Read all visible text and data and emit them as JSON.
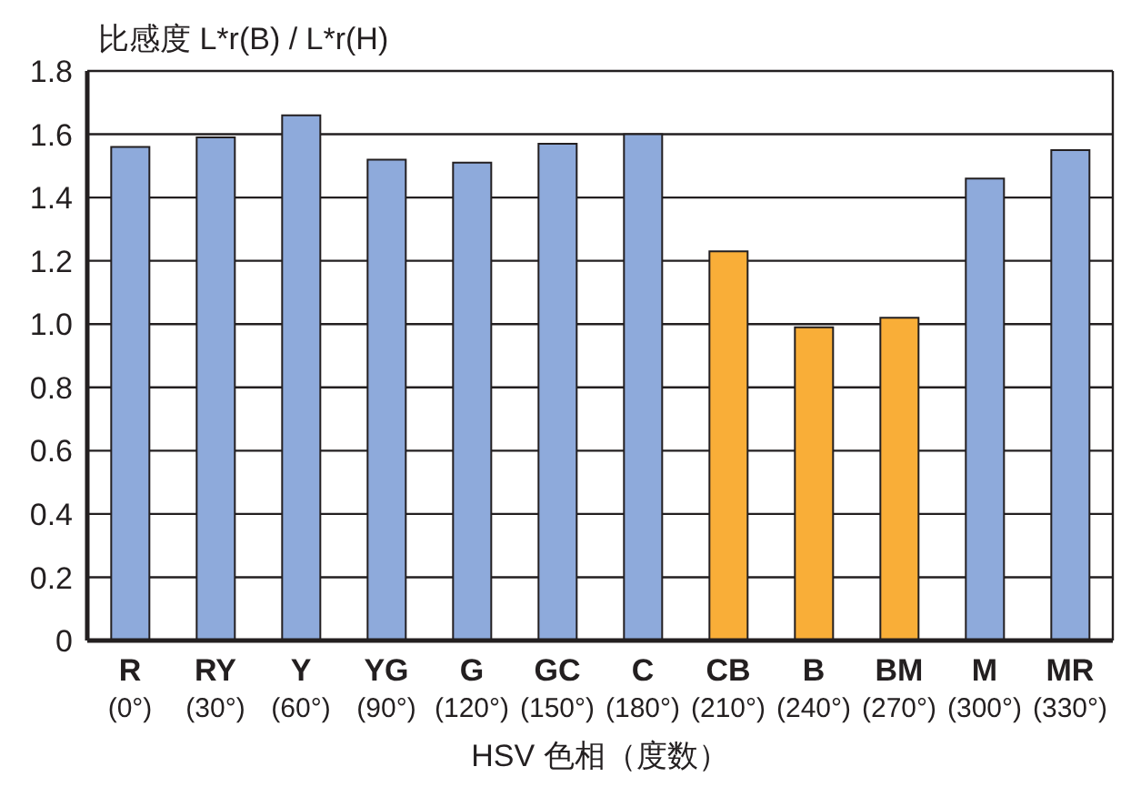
{
  "chart_data": {
    "type": "bar",
    "ylabel": "比感度 L*r(B) / L*r(H)",
    "xlabel": "HSV 色相（度数）",
    "categories": [
      "R\n(0°)",
      "RY\n(30°)",
      "Y\n(60°)",
      "YG\n(90°)",
      "G\n(120°)",
      "GC\n(150°)",
      "C\n(180°)",
      "CB\n(210°)",
      "B\n(240°)",
      "BM\n(270°)",
      "M\n(300°)",
      "MR\n(330°)"
    ],
    "values": [
      1.56,
      1.59,
      1.66,
      1.52,
      1.51,
      1.57,
      1.6,
      1.23,
      0.99,
      1.02,
      1.46,
      1.55
    ],
    "colors": [
      "#8eaadb",
      "#8eaadb",
      "#8eaadb",
      "#8eaadb",
      "#8eaadb",
      "#8eaadb",
      "#8eaadb",
      "#f9ae38",
      "#f9ae38",
      "#f9ae38",
      "#8eaadb",
      "#8eaadb"
    ],
    "ylim": [
      0,
      1.8
    ],
    "yticks": [
      {
        "value": 0,
        "label": "0"
      },
      1.2,
      {
        "value": 0.2,
        "label": "0.2"
      },
      {
        "value": 0.4,
        "label": "0.4"
      },
      {
        "value": 0.6,
        "label": "0.6"
      },
      {
        "value": 0.8,
        "label": "0.8"
      },
      {
        "value": 1,
        "label": "1.0"
      },
      {
        "value": 1.4,
        "label": "1.4"
      },
      {
        "value": 1.6,
        "label": "1.6"
      },
      {
        "value": 1.8,
        "label": "1.8"
      }
    ],
    "grid": "y"
  }
}
